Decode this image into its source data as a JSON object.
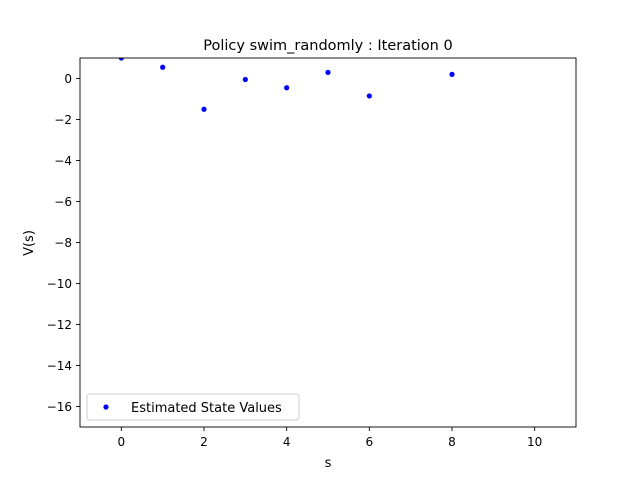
{
  "chart_data": {
    "type": "scatter",
    "title": "Policy swim_randomly : Iteration 0",
    "xlabel": "s",
    "ylabel": "V(s)",
    "xlim": [
      -1,
      11
    ],
    "ylim": [
      -17,
      1
    ],
    "xticks": [
      0,
      2,
      4,
      6,
      8,
      10
    ],
    "yticks": [
      0,
      -2,
      -4,
      -6,
      -8,
      -10,
      -12,
      -14,
      -16
    ],
    "xtick_labels": [
      "0",
      "2",
      "4",
      "6",
      "8",
      "10"
    ],
    "ytick_labels": [
      "0",
      "−2",
      "−4",
      "−6",
      "−8",
      "−10",
      "−12",
      "−14",
      "−16"
    ],
    "grid": false,
    "legend_position": "lower-left",
    "series": [
      {
        "name": "Estimated State Values",
        "color": "#0000ff",
        "marker": "point",
        "x": [
          0,
          1,
          2,
          3,
          4,
          5,
          6,
          8
        ],
        "y": [
          1.0,
          0.55,
          -1.5,
          -0.05,
          -0.45,
          0.3,
          -0.85,
          0.2
        ]
      }
    ]
  }
}
